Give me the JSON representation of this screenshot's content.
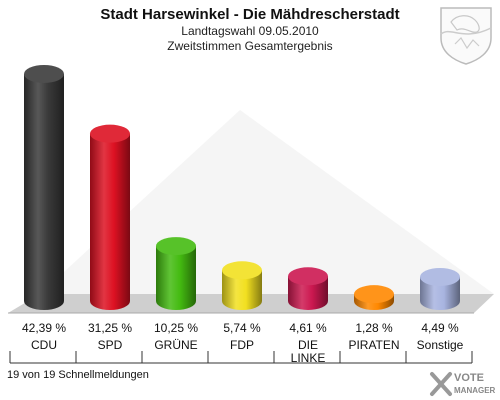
{
  "header": {
    "title": "Stadt Harsewinkel - Die Mähdrescherstadt",
    "subtitle1": "Landtagswahl 09.05.2010",
    "subtitle2": "Zweitstimmen Gesamtergebnis"
  },
  "footer": {
    "text": "19 von 19 Schnellmeldungen"
  },
  "watermark": {
    "line1": "VOTE",
    "line2": "MANAGER"
  },
  "colors": {
    "CDU": "#3a3a3a",
    "SPD": "#dd1122",
    "GRÜNE": "#44bb11",
    "FDP": "#f2e020",
    "DIE LINKE": "#cc1850",
    "PIRATEN": "#ff8800",
    "Sonstige": "#a8b4e0",
    "floor": "#cfcfcf"
  },
  "chart_data": {
    "type": "bar",
    "categories": [
      "CDU",
      "SPD",
      "GRÜNE",
      "FDP",
      "DIE LINKE",
      "PIRATEN",
      "Sonstige"
    ],
    "category_lines": [
      [
        "CDU"
      ],
      [
        "SPD"
      ],
      [
        "GRÜNE"
      ],
      [
        "FDP"
      ],
      [
        "DIE",
        "LINKE"
      ],
      [
        "PIRATEN"
      ],
      [
        "Sonstige"
      ]
    ],
    "values": [
      42.39,
      31.25,
      10.25,
      5.74,
      4.61,
      1.28,
      4.49
    ],
    "value_labels": [
      "42,39 %",
      "31,25 %",
      "10,25 %",
      "5,74 %",
      "4,61 %",
      "1,28 %",
      "4,49 %"
    ],
    "unit": "%",
    "ylim": [
      0,
      45
    ],
    "grid": false,
    "legend": "none"
  }
}
